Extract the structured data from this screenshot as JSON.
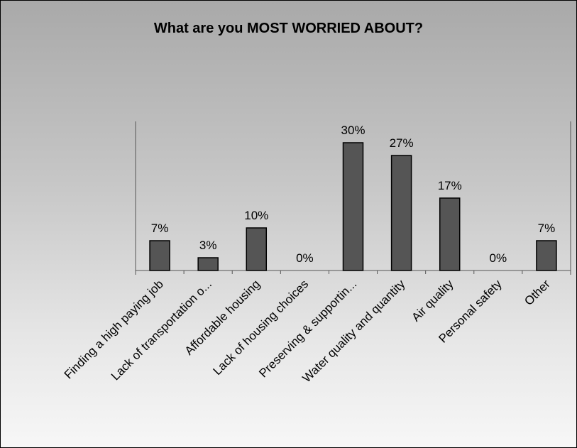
{
  "chart_data": {
    "type": "bar",
    "title": "What are you MOST WORRIED ABOUT?",
    "categories": [
      "Finding a high paying job",
      "Lack of transportation o...",
      "Affordable housing",
      "Lack of housing choices",
      "Preserving & supportin...",
      "Water quality and quantity",
      "Air quality",
      "Personal safety",
      "Other"
    ],
    "values": [
      7,
      3,
      10,
      0,
      30,
      27,
      17,
      0,
      7
    ],
    "data_labels": [
      "7%",
      "3%",
      "10%",
      "0%",
      "30%",
      "27%",
      "17%",
      "0%",
      "7%"
    ],
    "ylim": [
      0,
      35
    ],
    "grid": false,
    "legend": "none",
    "bar_color": "#555555"
  }
}
